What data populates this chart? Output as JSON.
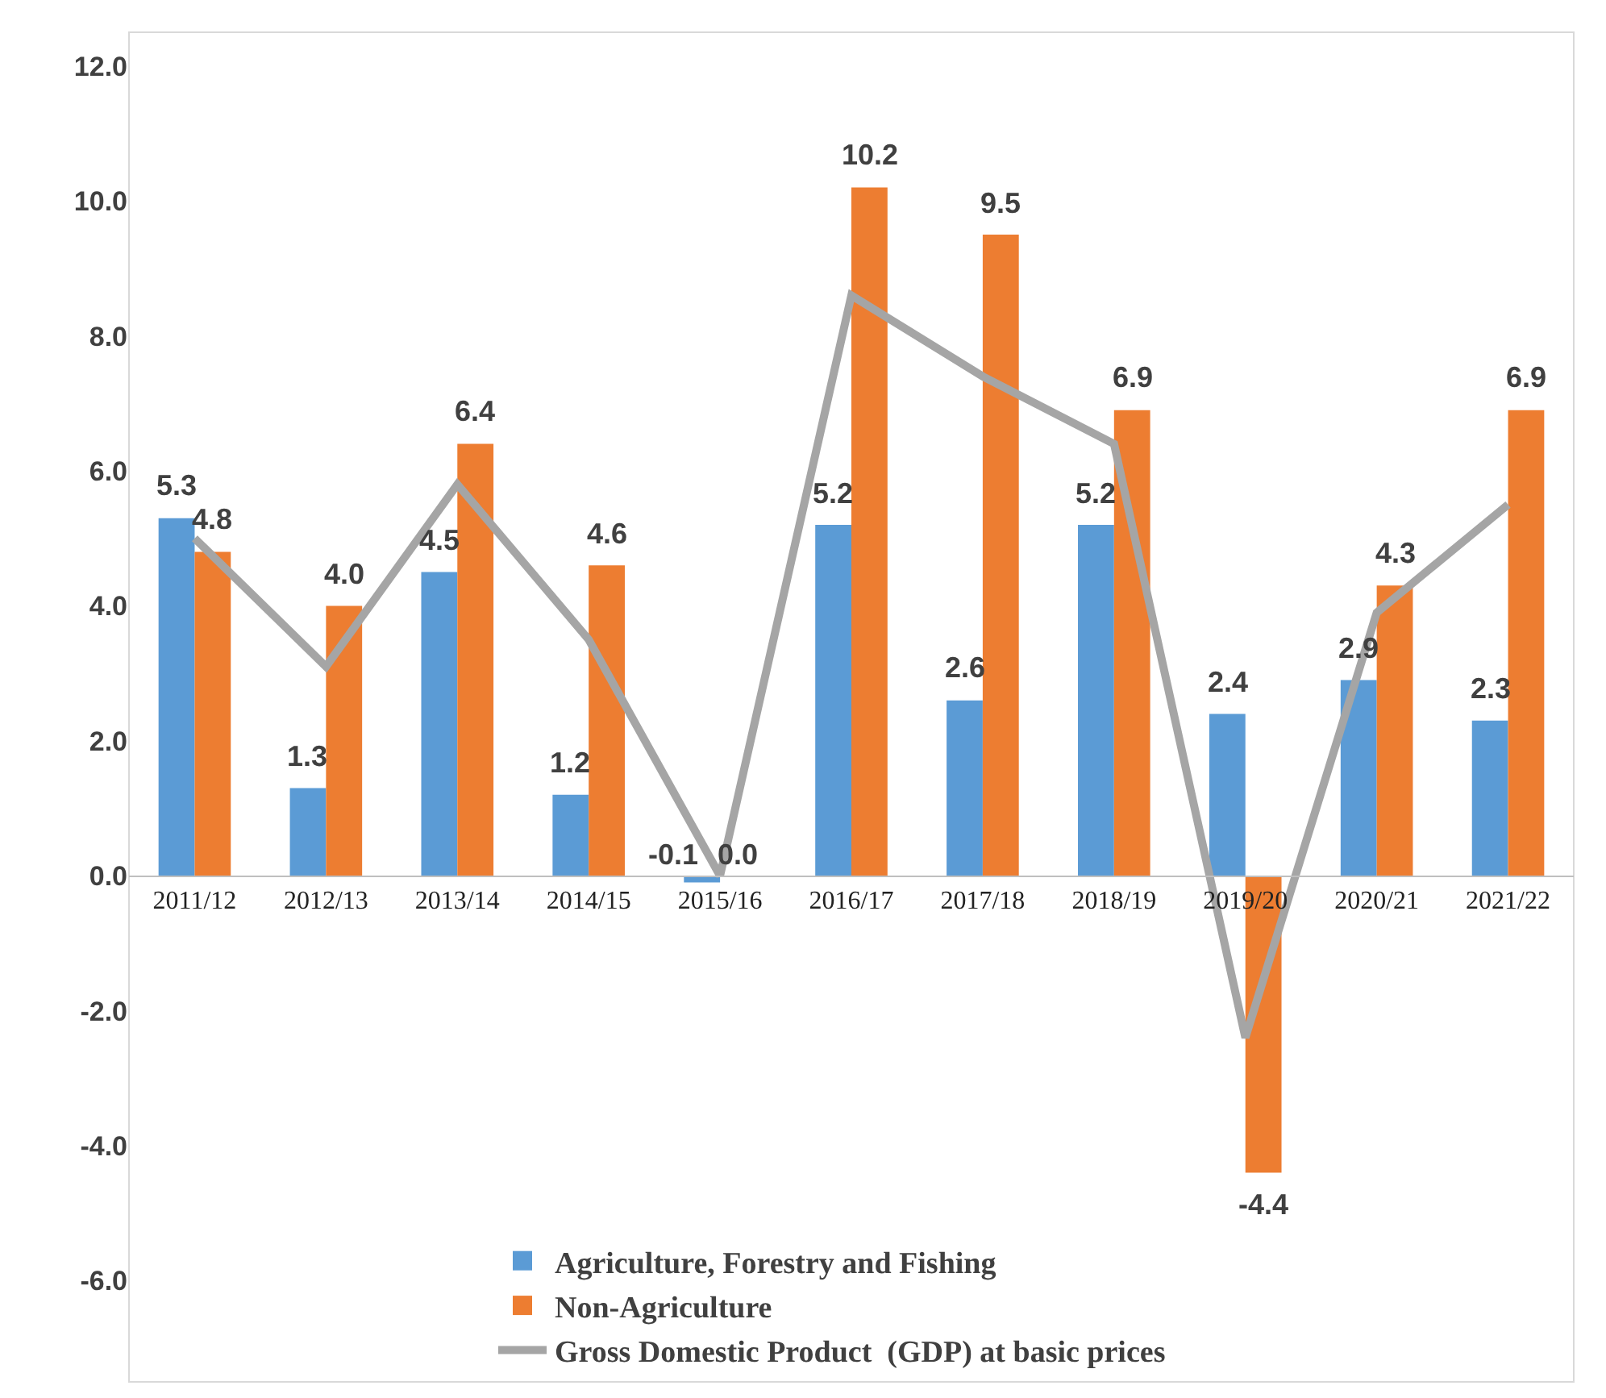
{
  "chart_data": {
    "type": "bar",
    "categories": [
      "2011/12",
      "2012/13",
      "2013/14",
      "2014/15",
      "2015/16",
      "2016/17",
      "2017/18",
      "2018/19",
      "2019/20",
      "2020/21",
      "2021/22"
    ],
    "series": [
      {
        "name": "Agriculture, Forestry and Fishing",
        "color": "#5b9bd5",
        "values": [
          5.3,
          1.3,
          4.5,
          1.2,
          -0.1,
          5.2,
          2.6,
          5.2,
          2.4,
          2.9,
          2.3
        ],
        "value_labels": [
          "5.3",
          "1.3",
          "4.5",
          "1.2",
          "-0.1",
          "5.2",
          "2.6",
          "5.2",
          "2.4",
          "2.9",
          "2.3"
        ]
      },
      {
        "name": "Non-Agriculture",
        "color": "#ed7d31",
        "values": [
          4.8,
          4.0,
          6.4,
          4.6,
          0.0,
          10.2,
          9.5,
          6.9,
          -4.4,
          4.3,
          6.9
        ],
        "value_labels": [
          "4.8",
          "4.0",
          "6.4",
          "4.6",
          "0.0",
          "10.2",
          "9.5",
          "6.9",
          "-4.4",
          "4.3",
          "6.9"
        ]
      },
      {
        "name": "Gross Domestic Product  (GDP) at basic prices",
        "type": "line",
        "color": "#a5a5a5",
        "values": [
          5.0,
          3.1,
          5.8,
          3.5,
          0.0,
          8.6,
          7.4,
          6.4,
          -2.4,
          3.9,
          5.5
        ]
      }
    ],
    "ylim": [
      -7.5,
      12.5
    ],
    "yticks": [
      {
        "value": -6,
        "label": "-6.0"
      },
      {
        "value": -4,
        "label": "-4.0"
      },
      {
        "value": -2,
        "label": "-2.0"
      },
      {
        "value": 0,
        "label": "0.0"
      },
      {
        "value": 2,
        "label": "2.0"
      },
      {
        "value": 4,
        "label": "4.0"
      },
      {
        "value": 6,
        "label": "6.0"
      },
      {
        "value": 8,
        "label": "8.0"
      },
      {
        "value": 10,
        "label": "10.0"
      },
      {
        "value": 12,
        "label": "12.0"
      }
    ],
    "grid": false,
    "legend": "bottom",
    "marker": "none",
    "line_style": "solid"
  }
}
